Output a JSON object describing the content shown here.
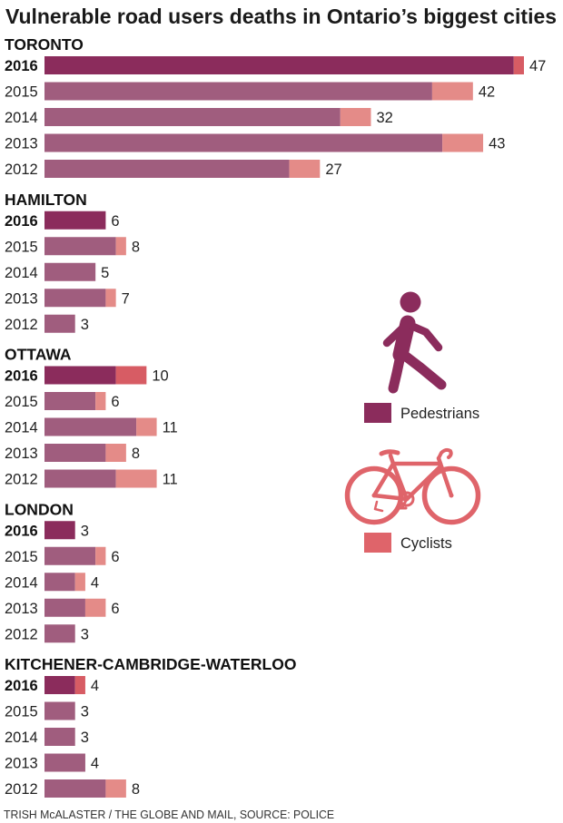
{
  "source": "TRISH McALASTER / THE GLOBE AND MAIL, SOURCE: POLICE",
  "chart_data": {
    "type": "bar",
    "orientation": "horizontal",
    "stacked": true,
    "grid": false,
    "title": "Vulnerable road users deaths in Ontario’s biggest cities",
    "highlight_year": "2016",
    "legend_position": "right",
    "legend": [
      {
        "label": "Pedestrians",
        "icon": "pedestrian-icon",
        "color": "#8b2c5c"
      },
      {
        "label": "Cyclists",
        "icon": "bicycle-icon",
        "color": "#df646a"
      }
    ],
    "colors": {
      "pedestrians_highlight": "#8b2c5c",
      "cyclists_highlight": "#d75c64",
      "pedestrians": "#a05d7e",
      "cyclists": "#e48b88"
    },
    "groups": [
      {
        "name": "TORONTO",
        "rows": [
          {
            "year": "2016",
            "pedestrians": 46,
            "cyclists": 1,
            "total": 47
          },
          {
            "year": "2015",
            "pedestrians": 38,
            "cyclists": 4,
            "total": 42
          },
          {
            "year": "2014",
            "pedestrians": 29,
            "cyclists": 3,
            "total": 32
          },
          {
            "year": "2013",
            "pedestrians": 39,
            "cyclists": 4,
            "total": 43
          },
          {
            "year": "2012",
            "pedestrians": 24,
            "cyclists": 3,
            "total": 27
          }
        ]
      },
      {
        "name": "HAMILTON",
        "rows": [
          {
            "year": "2016",
            "pedestrians": 6,
            "cyclists": 0,
            "total": 6
          },
          {
            "year": "2015",
            "pedestrians": 7,
            "cyclists": 1,
            "total": 8
          },
          {
            "year": "2014",
            "pedestrians": 5,
            "cyclists": 0,
            "total": 5
          },
          {
            "year": "2013",
            "pedestrians": 6,
            "cyclists": 1,
            "total": 7
          },
          {
            "year": "2012",
            "pedestrians": 3,
            "cyclists": 0,
            "total": 3
          }
        ]
      },
      {
        "name": "OTTAWA",
        "rows": [
          {
            "year": "2016",
            "pedestrians": 7,
            "cyclists": 3,
            "total": 10
          },
          {
            "year": "2015",
            "pedestrians": 5,
            "cyclists": 1,
            "total": 6
          },
          {
            "year": "2014",
            "pedestrians": 9,
            "cyclists": 2,
            "total": 11
          },
          {
            "year": "2013",
            "pedestrians": 6,
            "cyclists": 2,
            "total": 8
          },
          {
            "year": "2012",
            "pedestrians": 7,
            "cyclists": 4,
            "total": 11
          }
        ]
      },
      {
        "name": "LONDON",
        "rows": [
          {
            "year": "2016",
            "pedestrians": 3,
            "cyclists": 0,
            "total": 3
          },
          {
            "year": "2015",
            "pedestrians": 5,
            "cyclists": 1,
            "total": 6
          },
          {
            "year": "2014",
            "pedestrians": 3,
            "cyclists": 1,
            "total": 4
          },
          {
            "year": "2013",
            "pedestrians": 4,
            "cyclists": 2,
            "total": 6
          },
          {
            "year": "2012",
            "pedestrians": 3,
            "cyclists": 0,
            "total": 3
          }
        ]
      },
      {
        "name": "KITCHENER-CAMBRIDGE-WATERLOO",
        "rows": [
          {
            "year": "2016",
            "pedestrians": 3,
            "cyclists": 1,
            "total": 4
          },
          {
            "year": "2015",
            "pedestrians": 3,
            "cyclists": 0,
            "total": 3
          },
          {
            "year": "2014",
            "pedestrians": 3,
            "cyclists": 0,
            "total": 3
          },
          {
            "year": "2013",
            "pedestrians": 4,
            "cyclists": 0,
            "total": 4
          },
          {
            "year": "2012",
            "pedestrians": 6,
            "cyclists": 2,
            "total": 8
          }
        ]
      }
    ]
  }
}
